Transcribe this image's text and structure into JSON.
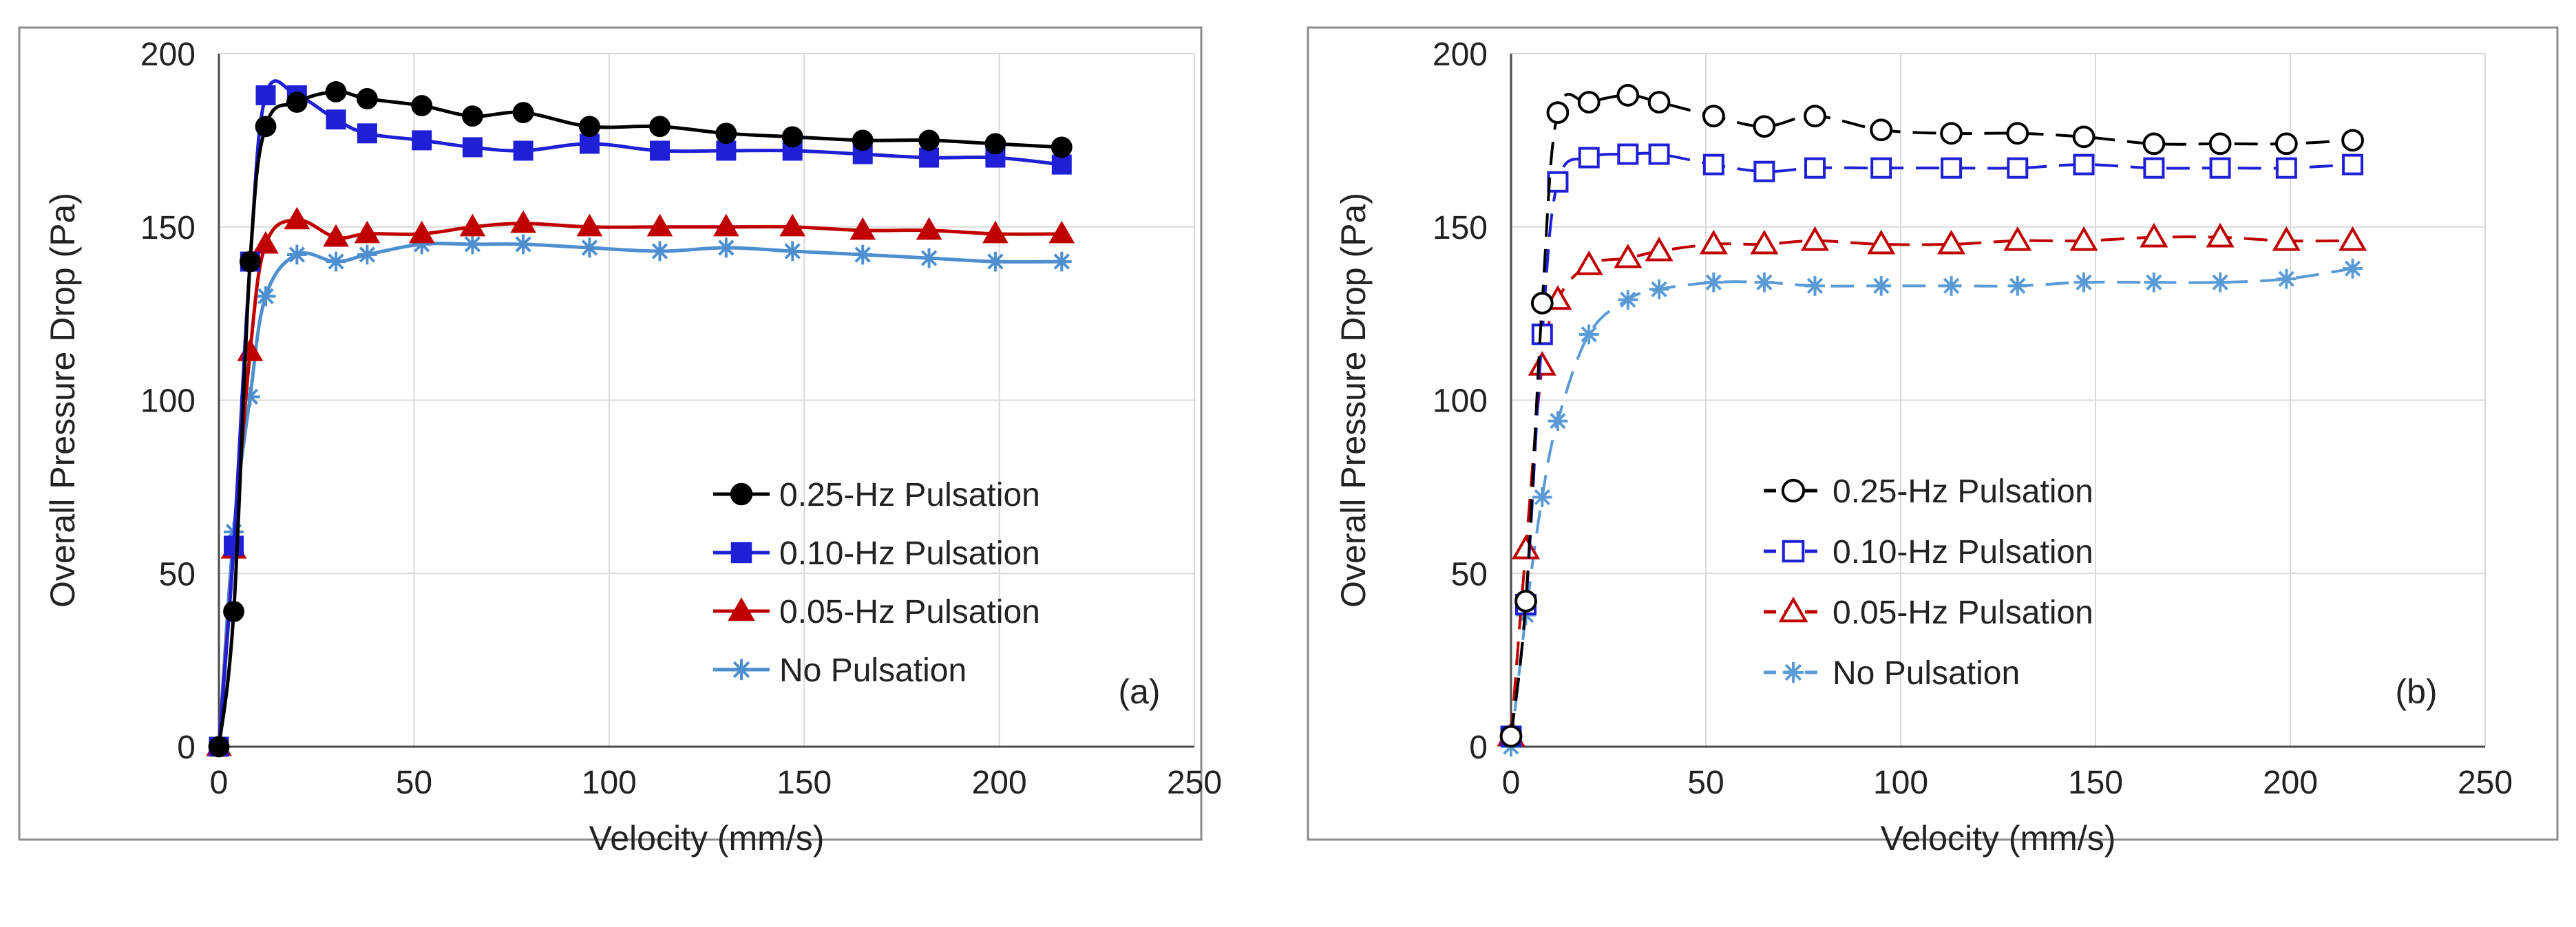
{
  "chart_data": [
    {
      "type": "line",
      "panel_label": "(a)",
      "xlabel": "Velocity (mm/s)",
      "ylabel": "Overall Pressure Drop (Pa)",
      "xlim": [
        0,
        250
      ],
      "ylim": [
        0,
        200
      ],
      "xticks": [
        "0",
        "50",
        "100",
        "150",
        "200",
        "250"
      ],
      "yticks": [
        "0",
        "50",
        "100",
        "150",
        "200"
      ],
      "grid": true,
      "legend_position": "lower-right",
      "series": [
        {
          "name": "0.25-Hz Pulsation",
          "color": "#000000",
          "marker": "circle-filled",
          "line": "solid",
          "x": [
            0,
            3.8,
            8,
            12,
            20,
            30,
            38,
            52,
            65,
            78,
            95,
            113,
            130,
            147,
            165,
            182,
            199,
            216
          ],
          "values": [
            0,
            39,
            140,
            179,
            186,
            189,
            187,
            185,
            182,
            183,
            179,
            179,
            177,
            176,
            175,
            175,
            174,
            173
          ]
        },
        {
          "name": "0.10-Hz Pulsation",
          "color": "#1f1fd6",
          "marker": "square-filled",
          "line": "solid",
          "x": [
            0,
            3.8,
            8,
            12,
            20,
            30,
            38,
            52,
            65,
            78,
            95,
            113,
            130,
            147,
            165,
            182,
            199,
            216
          ],
          "values": [
            0,
            58,
            140,
            188,
            188,
            181,
            177,
            175,
            173,
            172,
            174,
            172,
            172,
            172,
            171,
            170,
            170,
            168
          ]
        },
        {
          "name": "0.05-Hz Pulsation",
          "color": "#c00000",
          "marker": "triangle-filled",
          "line": "solid",
          "x": [
            0,
            3.8,
            8,
            12,
            20,
            30,
            38,
            52,
            65,
            78,
            95,
            113,
            130,
            147,
            165,
            182,
            199,
            216
          ],
          "values": [
            0,
            57,
            114,
            145,
            152,
            147,
            148,
            148,
            150,
            151,
            150,
            150,
            150,
            150,
            149,
            149,
            148,
            148
          ]
        },
        {
          "name": "No Pulsation",
          "color": "#4d8fcf",
          "marker": "asterisk",
          "line": "solid",
          "x": [
            0,
            3.8,
            8,
            12,
            20,
            30,
            38,
            52,
            65,
            78,
            95,
            113,
            130,
            147,
            165,
            182,
            199,
            216
          ],
          "values": [
            0,
            62,
            101,
            130,
            142,
            140,
            142,
            145,
            145,
            145,
            144,
            143,
            144,
            143,
            142,
            141,
            140,
            140
          ]
        }
      ]
    },
    {
      "type": "line",
      "panel_label": "(b)",
      "xlabel": "Velocity (mm/s)",
      "ylabel": "Overall Pressure Drop (Pa)",
      "xlim": [
        0,
        250
      ],
      "ylim": [
        0,
        200
      ],
      "xticks": [
        "0",
        "50",
        "100",
        "150",
        "200",
        "250"
      ],
      "yticks": [
        "0",
        "50",
        "100",
        "150",
        "200"
      ],
      "grid": true,
      "legend_position": "lower-right",
      "series": [
        {
          "name": "0.25-Hz Pulsation",
          "color": "#000000",
          "marker": "circle-open",
          "line": "dashed",
          "x": [
            0,
            3.8,
            8,
            12,
            20,
            30,
            38,
            52,
            65,
            78,
            95,
            113,
            130,
            147,
            165,
            182,
            199,
            216
          ],
          "values": [
            3,
            42,
            128,
            183,
            186,
            188,
            186,
            182,
            179,
            182,
            178,
            177,
            177,
            176,
            174,
            174,
            174,
            175
          ]
        },
        {
          "name": "0.10-Hz Pulsation",
          "color": "#1f1fd6",
          "marker": "square-open",
          "line": "dashed",
          "x": [
            0,
            3.8,
            8,
            12,
            20,
            30,
            38,
            52,
            65,
            78,
            95,
            113,
            130,
            147,
            165,
            182,
            199,
            216
          ],
          "values": [
            3,
            41,
            119,
            163,
            170,
            171,
            171,
            168,
            166,
            167,
            167,
            167,
            167,
            168,
            167,
            167,
            167,
            168
          ]
        },
        {
          "name": "0.05-Hz Pulsation",
          "color": "#c00000",
          "marker": "triangle-open",
          "line": "dashed",
          "x": [
            0,
            3.8,
            8,
            12,
            20,
            30,
            38,
            52,
            65,
            78,
            95,
            113,
            130,
            147,
            165,
            182,
            199,
            216
          ],
          "values": [
            3,
            57,
            110,
            129,
            139,
            141,
            143,
            145,
            145,
            146,
            145,
            145,
            146,
            146,
            147,
            147,
            146,
            146
          ]
        },
        {
          "name": "No Pulsation",
          "color": "#5b9bd5",
          "marker": "asterisk",
          "line": "dashed",
          "x": [
            0,
            3.8,
            8,
            12,
            20,
            30,
            38,
            52,
            65,
            78,
            95,
            113,
            130,
            147,
            165,
            182,
            199,
            216
          ],
          "values": [
            0,
            38,
            72,
            94,
            119,
            129,
            132,
            134,
            134,
            133,
            133,
            133,
            133,
            134,
            134,
            134,
            135,
            138
          ]
        }
      ]
    }
  ]
}
